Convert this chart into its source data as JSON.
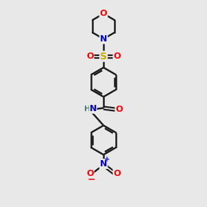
{
  "bg_color": "#e8e8e8",
  "bond_color": "#1a1a1a",
  "bond_width": 1.8,
  "atom_colors": {
    "O": "#ff0000",
    "N": "#0000cc",
    "S": "#ccaa00",
    "H": "#408080"
  },
  "figsize": [
    3.0,
    3.0
  ],
  "dpi": 100,
  "xlim": [
    -2.5,
    2.5
  ],
  "ylim": [
    -5.5,
    4.5
  ]
}
